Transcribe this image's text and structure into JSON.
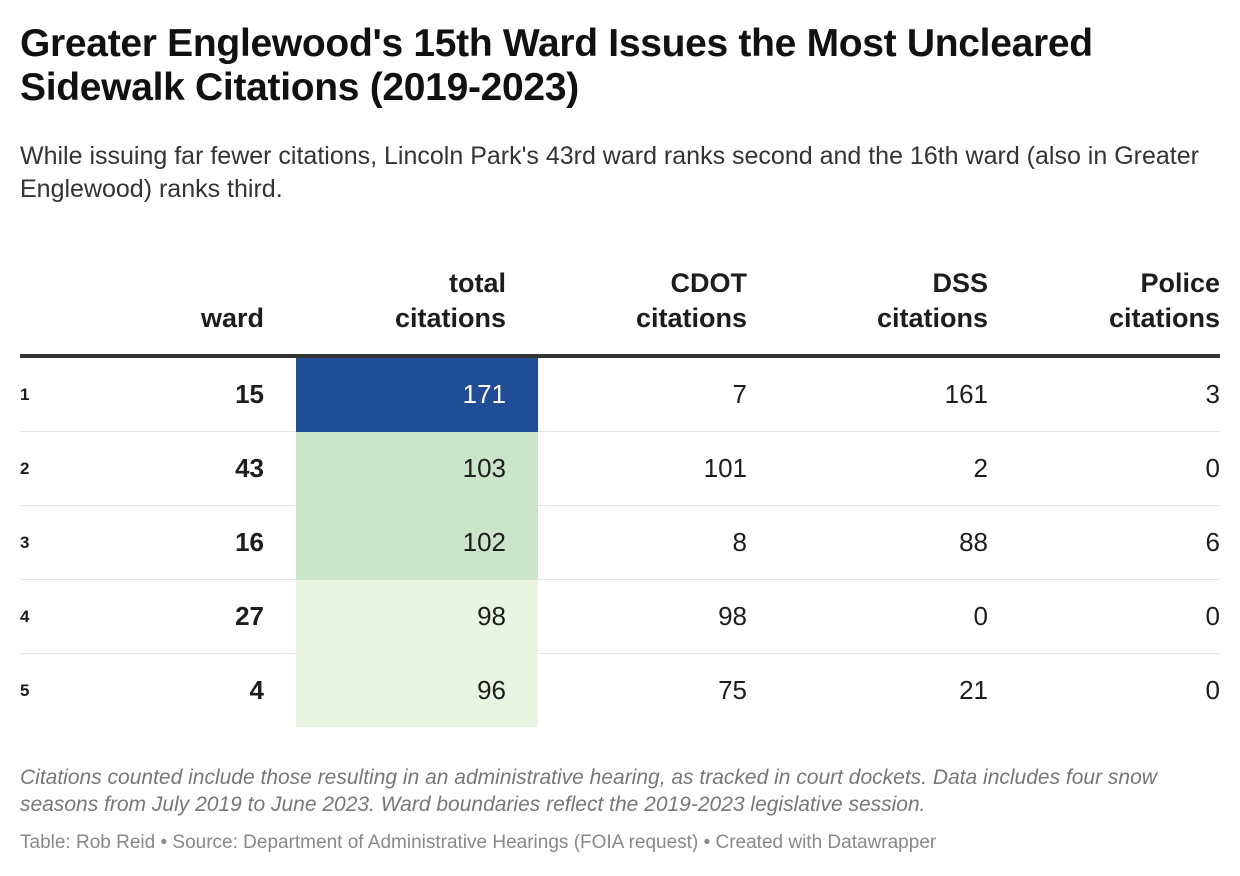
{
  "header": {
    "title": "Greater Englewood's 15th Ward Issues the Most Uncleared Sidewalk Citations (2019-2023)",
    "subtitle": "While issuing far fewer citations, Lincoln Park's 43rd ward ranks second and the 16th ward (also in Greater Englewood) ranks third."
  },
  "chart_data": {
    "type": "table",
    "title": "Greater Englewood's 15th Ward Issues the Most Uncleared Sidewalk Citations (2019-2023)",
    "columns": [
      "",
      "ward",
      "total citations",
      "CDOT citations",
      "DSS citations",
      "Police citations"
    ],
    "rows": [
      {
        "rank": "1",
        "ward": "15",
        "total": 171,
        "cdot": 7,
        "dss": 161,
        "police": 3
      },
      {
        "rank": "2",
        "ward": "43",
        "total": 103,
        "cdot": 101,
        "dss": 2,
        "police": 0
      },
      {
        "rank": "3",
        "ward": "16",
        "total": 102,
        "cdot": 8,
        "dss": 88,
        "police": 6
      },
      {
        "rank": "4",
        "ward": "27",
        "total": 98,
        "cdot": 98,
        "dss": 0,
        "police": 0
      },
      {
        "rank": "5",
        "ward": "4",
        "total": 96,
        "cdot": 75,
        "dss": 21,
        "police": 0
      }
    ],
    "heatmap_column": "total",
    "heatmap_colors": {
      "high": "#1f4e96",
      "mid": "#cbe5c8",
      "low": "#e9f4e1",
      "high_text": "#ffffff",
      "normal_text": "#1d1d1d"
    }
  },
  "footer": {
    "notes": "Citations counted include those resulting in an administrative hearing, as tracked in court dockets. Data includes four snow seasons from July 2019 to June 2023. Ward boundaries reflect the 2019-2023 legislative session.",
    "credit": "Table: Rob Reid • Source: Department of Administrative Hearings (FOIA request) • Created with Datawrapper"
  }
}
